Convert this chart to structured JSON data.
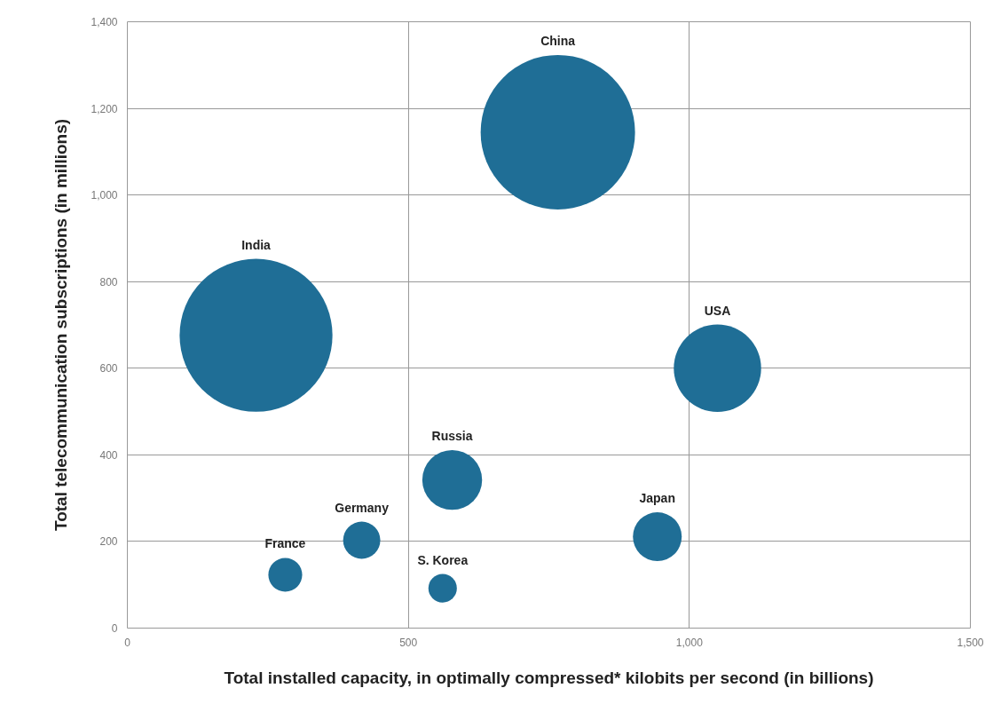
{
  "chart_data": {
    "type": "bubble",
    "xlabel": "Total installed capacity, in optimally compressed* kilobits per second (in billions)",
    "ylabel": "Total telecommunication subscriptions (in millions)",
    "series": [
      {
        "name": "China",
        "color": "#1f6e96",
        "x": [
          766
        ],
        "values": [
          1145
        ],
        "sizes": [
          1
        ]
      },
      {
        "name": "India",
        "color": "#1f6e96",
        "x": [
          229
        ],
        "values": [
          676
        ],
        "sizes": [
          0.98
        ]
      },
      {
        "name": "USA",
        "color": "#1f6e96",
        "x": [
          1050
        ],
        "values": [
          600
        ],
        "sizes": [
          0.32
        ]
      },
      {
        "name": "Russia",
        "color": "#1f6e96",
        "x": [
          578
        ],
        "values": [
          342
        ],
        "sizes": [
          0.15
        ]
      },
      {
        "name": "Japan",
        "color": "#1f6e96",
        "x": [
          943
        ],
        "values": [
          211
        ],
        "sizes": [
          0.1
        ]
      },
      {
        "name": "Germany",
        "color": "#1f6e96",
        "x": [
          417
        ],
        "values": [
          203
        ],
        "sizes": [
          0.058
        ]
      },
      {
        "name": "France",
        "color": "#1f6e96",
        "x": [
          281
        ],
        "values": [
          123
        ],
        "sizes": [
          0.048
        ]
      },
      {
        "name": "S. Korea",
        "color": "#1f6e96",
        "x": [
          561
        ],
        "values": [
          92
        ],
        "sizes": [
          0.034
        ]
      }
    ],
    "xlim": [
      0,
      1500
    ],
    "xticks": [
      0,
      500,
      {
        "value": 1000,
        "label": "1,000"
      },
      {
        "value": 1500,
        "label": "1,500"
      }
    ],
    "ylim": [
      0,
      1400
    ],
    "yticks": [
      0,
      200,
      400,
      600,
      800,
      {
        "value": 1000,
        "label": "1,000"
      },
      {
        "value": 1200,
        "label": "1,200"
      },
      {
        "value": 1400,
        "label": "1,400"
      }
    ],
    "grid": true
  }
}
